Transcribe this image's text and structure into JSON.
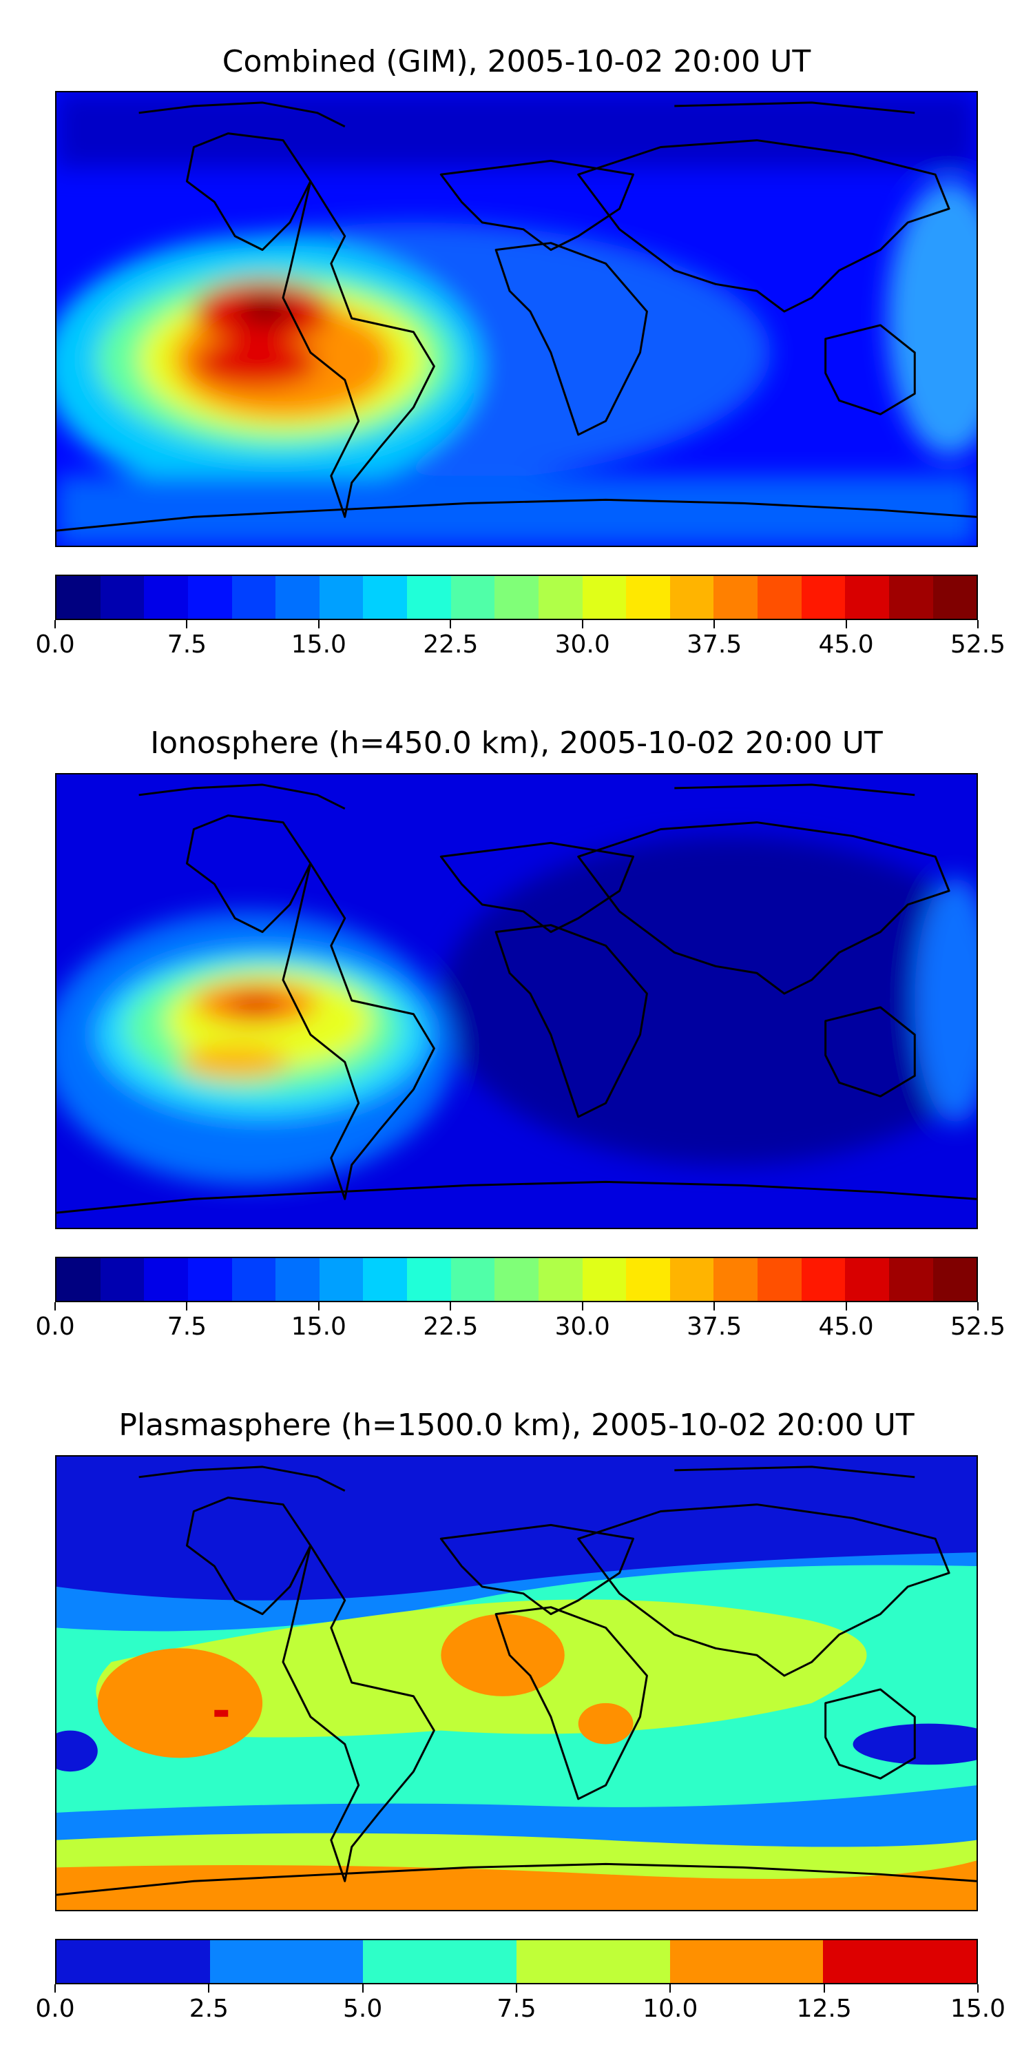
{
  "panels": [
    {
      "title": "Combined (GIM), 2005-10-02 20:00 UT",
      "colorbar": {
        "colors": [
          "#000080",
          "#0000b0",
          "#0000e8",
          "#0010ff",
          "#0040ff",
          "#0070ff",
          "#00a0ff",
          "#00d0ff",
          "#20ffd8",
          "#50ffa8",
          "#80ff78",
          "#b0ff48",
          "#e0ff18",
          "#ffe800",
          "#ffb400",
          "#ff8000",
          "#ff5000",
          "#ff1800",
          "#d80000",
          "#a00000",
          "#800000"
        ],
        "ticks": [
          "0.0",
          "7.5",
          "15.0",
          "22.5",
          "30.0",
          "37.5",
          "45.0",
          "52.5"
        ]
      }
    },
    {
      "title": "Ionosphere  (h=450.0 km), 2005-10-02 20:00 UT",
      "colorbar": {
        "colors": [
          "#000080",
          "#0000b0",
          "#0000e8",
          "#0010ff",
          "#0040ff",
          "#0070ff",
          "#00a0ff",
          "#00d0ff",
          "#20ffd8",
          "#50ffa8",
          "#80ff78",
          "#b0ff48",
          "#e0ff18",
          "#ffe800",
          "#ffb400",
          "#ff8000",
          "#ff5000",
          "#ff1800",
          "#d80000",
          "#a00000",
          "#800000"
        ],
        "ticks": [
          "0.0",
          "7.5",
          "15.0",
          "22.5",
          "30.0",
          "37.5",
          "45.0",
          "52.5"
        ]
      }
    },
    {
      "title": "Plasmasphere (h=1500.0 km), 2005-10-02 20:00 UT",
      "colorbar": {
        "colors": [
          "#0a14d8",
          "#0a84ff",
          "#2effc8",
          "#c0ff38",
          "#ff9000",
          "#dd0000"
        ],
        "ticks": [
          "0.0",
          "2.5",
          "5.0",
          "7.5",
          "10.0",
          "12.5",
          "15.0"
        ]
      }
    }
  ]
}
